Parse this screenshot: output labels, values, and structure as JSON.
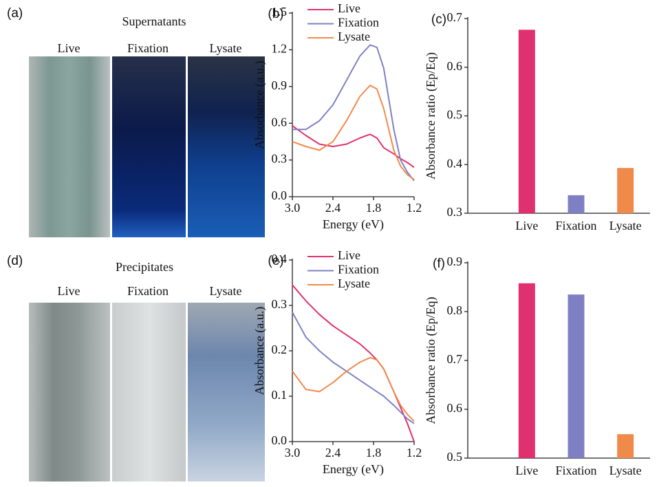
{
  "photos": [
    {
      "label": "(a)",
      "title": "Supernatants",
      "columns": [
        "Live",
        "Fixation",
        "Lysate"
      ]
    },
    {
      "label": "(d)",
      "title": "Precipitates",
      "columns": [
        "Live",
        "Fixation",
        "Lysate"
      ]
    }
  ],
  "chart_data": [
    {
      "type": "line",
      "panel": "(b)",
      "xlabel": "Energy (eV)",
      "ylabel": "Absorbance (a.u.)",
      "x": [
        3.0,
        2.8,
        2.6,
        2.4,
        2.2,
        2.0,
        1.85,
        1.75,
        1.65,
        1.5,
        1.4,
        1.3,
        1.2
      ],
      "series": [
        {
          "name": "Live",
          "color": "#e0306e",
          "values": [
            0.58,
            0.5,
            0.43,
            0.41,
            0.43,
            0.48,
            0.51,
            0.48,
            0.4,
            0.35,
            0.31,
            0.28,
            0.24
          ]
        },
        {
          "name": "Fixation",
          "color": "#7f80c4",
          "values": [
            0.55,
            0.55,
            0.62,
            0.75,
            0.95,
            1.15,
            1.24,
            1.22,
            1.05,
            0.55,
            0.3,
            0.2,
            0.13
          ]
        },
        {
          "name": "Lysate",
          "color": "#f08a4b",
          "values": [
            0.45,
            0.41,
            0.38,
            0.45,
            0.62,
            0.82,
            0.91,
            0.88,
            0.72,
            0.38,
            0.25,
            0.18,
            0.14
          ]
        }
      ],
      "xlim": [
        3.0,
        1.2
      ],
      "xticks": [
        {
          "value": 3,
          "label": "3.0"
        },
        2.4,
        1.8,
        1.2
      ],
      "ylim": [
        0,
        1.5
      ],
      "yticks": [
        {
          "value": 0,
          "label": "0.0"
        },
        0.3,
        0.6,
        0.9,
        1.2,
        1.5
      ],
      "grid": false,
      "legend": "top"
    },
    {
      "type": "bar",
      "panel": "(c)",
      "ylabel": "Absorbance ratio (Ep/Eq)",
      "categories": [
        "Live",
        "Fixation",
        "Lysate"
      ],
      "values": [
        0.677,
        0.337,
        0.393
      ],
      "colors": [
        "#e0306e",
        "#7f80c4",
        "#f08a4b"
      ],
      "ylim": [
        0.3,
        0.7
      ],
      "yticks": [
        0.3,
        0.4,
        0.5,
        0.6,
        0.7
      ],
      "grid": false
    },
    {
      "type": "line",
      "panel": "(e)",
      "xlabel": "Energy (eV)",
      "ylabel": "Absorbance (a.u.)",
      "x": [
        3.0,
        2.8,
        2.6,
        2.4,
        2.2,
        2.0,
        1.85,
        1.75,
        1.65,
        1.5,
        1.4,
        1.3,
        1.2
      ],
      "series": [
        {
          "name": "Live",
          "color": "#e0306e",
          "values": [
            0.345,
            0.31,
            0.28,
            0.255,
            0.235,
            0.215,
            0.195,
            0.18,
            0.16,
            0.11,
            0.075,
            0.04,
            0.0
          ]
        },
        {
          "name": "Fixation",
          "color": "#7f80c4",
          "values": [
            0.285,
            0.23,
            0.2,
            0.175,
            0.155,
            0.135,
            0.12,
            0.11,
            0.1,
            0.08,
            0.065,
            0.05,
            0.04
          ]
        },
        {
          "name": "Lysate",
          "color": "#f08a4b",
          "values": [
            0.155,
            0.115,
            0.11,
            0.13,
            0.155,
            0.175,
            0.185,
            0.18,
            0.16,
            0.11,
            0.08,
            0.06,
            0.045
          ]
        }
      ],
      "xlim": [
        3.0,
        1.2
      ],
      "xticks": [
        {
          "value": 3,
          "label": "3.0"
        },
        2.4,
        1.8,
        1.2
      ],
      "ylim": [
        0,
        0.4
      ],
      "yticks": [
        {
          "value": 0,
          "label": "0.0"
        },
        0.1,
        0.2,
        0.3,
        0.4
      ],
      "grid": false,
      "legend": "top"
    },
    {
      "type": "bar",
      "panel": "(f)",
      "ylabel": "Absorbance ratio (Ep/Eq)",
      "categories": [
        "Live",
        "Fixation",
        "Lysate"
      ],
      "values": [
        0.858,
        0.835,
        0.549
      ],
      "colors": [
        "#e0306e",
        "#7f80c4",
        "#f08a4b"
      ],
      "ylim": [
        0.5,
        0.9
      ],
      "yticks": [
        0.5,
        0.6,
        0.7,
        0.8,
        0.9
      ],
      "grid": false
    }
  ]
}
